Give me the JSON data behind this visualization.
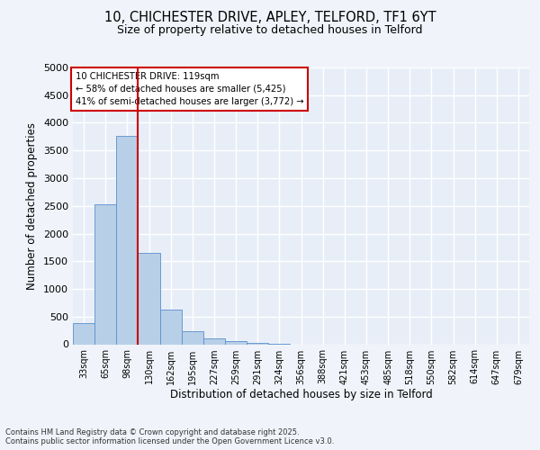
{
  "title1": "10, CHICHESTER DRIVE, APLEY, TELFORD, TF1 6YT",
  "title2": "Size of property relative to detached houses in Telford",
  "xlabel": "Distribution of detached houses by size in Telford",
  "ylabel": "Number of detached properties",
  "categories": [
    "33sqm",
    "65sqm",
    "98sqm",
    "130sqm",
    "162sqm",
    "195sqm",
    "227sqm",
    "259sqm",
    "291sqm",
    "324sqm",
    "356sqm",
    "388sqm",
    "421sqm",
    "453sqm",
    "485sqm",
    "518sqm",
    "550sqm",
    "582sqm",
    "614sqm",
    "647sqm",
    "679sqm"
  ],
  "values": [
    390,
    2530,
    3760,
    1650,
    620,
    230,
    105,
    55,
    30,
    5,
    0,
    0,
    0,
    0,
    0,
    0,
    0,
    0,
    0,
    0,
    0
  ],
  "bar_color": "#b8cfe8",
  "bar_edge_color": "#5b8fcc",
  "vline_color": "#cc0000",
  "annotation_text": "10 CHICHESTER DRIVE: 119sqm\n← 58% of detached houses are smaller (5,425)\n41% of semi-detached houses are larger (3,772) →",
  "annotation_box_color": "#cc0000",
  "ylim": [
    0,
    5000
  ],
  "yticks": [
    0,
    500,
    1000,
    1500,
    2000,
    2500,
    3000,
    3500,
    4000,
    4500,
    5000
  ],
  "bg_color": "#e8eef8",
  "grid_color": "#ffffff",
  "footer": "Contains HM Land Registry data © Crown copyright and database right 2025.\nContains public sector information licensed under the Open Government Licence v3.0.",
  "fig_bg": "#f0f4fa"
}
